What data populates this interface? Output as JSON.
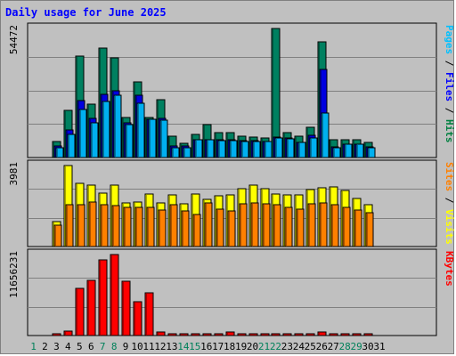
{
  "chart_data": [
    {
      "type": "bar",
      "title": "Daily usage for June 2025",
      "ylabel_parts": [
        {
          "text": "Pages",
          "color": "#00c0ff"
        },
        {
          "text": " / ",
          "color": "#000000"
        },
        {
          "text": "Files",
          "color": "#0000ff"
        },
        {
          "text": " / ",
          "color": "#000000"
        },
        {
          "text": "Hits",
          "color": "#008040"
        }
      ],
      "ymax_label": "54472",
      "ylim": [
        0,
        54472
      ],
      "categories": [
        "1",
        "2",
        "3",
        "4",
        "5",
        "6",
        "7",
        "8",
        "9",
        "10",
        "11",
        "12",
        "13",
        "14",
        "15",
        "16",
        "17",
        "18",
        "19",
        "20",
        "21",
        "22",
        "23",
        "24",
        "25",
        "26",
        "27",
        "28",
        "29",
        "30",
        "31"
      ],
      "series": [
        {
          "name": "Hits",
          "color": "#008060",
          "values": [
            null,
            null,
            6740,
            19760,
            42810,
            22700,
            46170,
            41970,
            16830,
            31860,
            16830,
            24330,
            9120,
            5880,
            9690,
            13960,
            10640,
            10650,
            9150,
            8560,
            8280,
            54470,
            10650,
            8970,
            12760,
            48850,
            7420,
            7420,
            7410,
            6220,
            null
          ]
        },
        {
          "name": "Files",
          "color": "#0000e0",
          "values": [
            null,
            null,
            4940,
            11570,
            23960,
            16590,
            26740,
            28220,
            14640,
            26330,
            16080,
            16680,
            4940,
            4950,
            7400,
            7420,
            7370,
            7400,
            7030,
            7030,
            6940,
            8560,
            8170,
            6370,
            9270,
            37370,
            4490,
            5710,
            5710,
            4450,
            null
          ]
        },
        {
          "name": "Pages",
          "color": "#00b0f0",
          "values": [
            null,
            null,
            4040,
            9610,
            20330,
            14620,
            23520,
            26460,
            13910,
            23060,
            16040,
            15820,
            4040,
            4020,
            7400,
            7420,
            7030,
            7320,
            6800,
            6780,
            6750,
            8180,
            7990,
            6240,
            8420,
            18800,
            4040,
            5570,
            5570,
            3980,
            null
          ]
        }
      ],
      "grid": true
    },
    {
      "type": "bar",
      "ylabel_parts": [
        {
          "text": "Sites",
          "color": "#ff8000"
        },
        {
          "text": " / ",
          "color": "#000000"
        },
        {
          "text": "Visits",
          "color": "#ffff00"
        }
      ],
      "ymax_label": "3981",
      "ylim": [
        0,
        3981
      ],
      "series": [
        {
          "name": "Visits",
          "color": "#ffff00",
          "values": [
            null,
            null,
            1210,
            3969,
            3114,
            3029,
            2632,
            3029,
            2163,
            2205,
            2589,
            2162,
            2546,
            2120,
            2589,
            2334,
            2504,
            2547,
            2844,
            3029,
            2844,
            2589,
            2547,
            2547,
            2801,
            2887,
            2929,
            2760,
            2376,
            2077,
            null
          ]
        },
        {
          "name": "Sites",
          "color": "#ff8000",
          "values": [
            null,
            null,
            1070,
            2069,
            2077,
            2205,
            2077,
            1992,
            1919,
            1942,
            1929,
            1813,
            2041,
            1736,
            1590,
            2126,
            1829,
            1749,
            2090,
            2162,
            2119,
            2041,
            1920,
            1849,
            2086,
            2143,
            2069,
            1941,
            1806,
            1652,
            null
          ]
        }
      ],
      "grid": true
    },
    {
      "type": "bar",
      "ylabel_parts": [
        {
          "text": "KBytes",
          "color": "#ff0000"
        }
      ],
      "ymax_label": "11656231",
      "ylim": [
        0,
        11656231
      ],
      "series": [
        {
          "name": "KBytes",
          "color": "#ff0000",
          "values": [
            null,
            null,
            279000,
            612000,
            6770000,
            8000000,
            10920000,
            11656000,
            7775000,
            4900000,
            6100000,
            516000,
            107000,
            107000,
            107000,
            107000,
            107000,
            516000,
            107000,
            107000,
            107000,
            107000,
            107000,
            107000,
            107000,
            516000,
            107000,
            107000,
            107000,
            107000,
            null
          ]
        }
      ],
      "grid": true
    }
  ],
  "x_axis": {
    "labels": [
      "1",
      "2",
      "3",
      "4",
      "5",
      "6",
      "7",
      "8",
      "9",
      "10",
      "11",
      "12",
      "13",
      "14",
      "15",
      "16",
      "17",
      "18",
      "19",
      "20",
      "21",
      "22",
      "23",
      "24",
      "25",
      "26",
      "27",
      "28",
      "29",
      "30",
      "31"
    ],
    "weekend_days": [
      "1",
      "7",
      "8",
      "14",
      "15",
      "21",
      "22",
      "28",
      "29"
    ],
    "weekday_color": "#000000",
    "weekend_color": "#00805a"
  }
}
